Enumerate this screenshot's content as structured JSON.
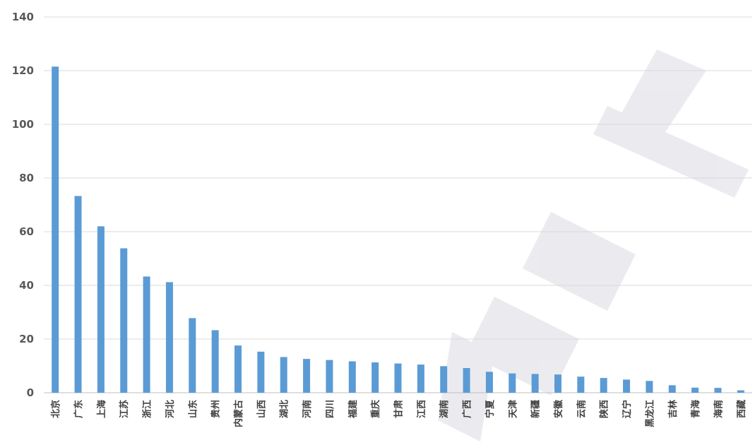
{
  "chart_data": {
    "type": "bar",
    "title": "",
    "xlabel": "",
    "ylabel": "",
    "ylim": [
      0,
      140
    ],
    "yticks": [
      0,
      20,
      40,
      60,
      80,
      100,
      120,
      140
    ],
    "grid": true,
    "legend": "none",
    "bar_color": "#5b9bd5",
    "categories": [
      "北京",
      "广东",
      "上海",
      "江苏",
      "浙江",
      "河北",
      "山东",
      "贵州",
      "内蒙古",
      "山西",
      "湖北",
      "河南",
      "四川",
      "福建",
      "重庆",
      "甘肃",
      "江西",
      "湖南",
      "广西",
      "宁夏",
      "天津",
      "新疆",
      "安徽",
      "云南",
      "陕西",
      "辽宁",
      "黑龙江",
      "吉林",
      "青海",
      "海南",
      "西藏"
    ],
    "values": [
      121.5,
      73.3,
      62,
      53.8,
      43.3,
      41.2,
      27.8,
      23.3,
      17.6,
      15.3,
      13.3,
      12.6,
      12.2,
      11.7,
      11.3,
      10.9,
      10.5,
      9.9,
      9.2,
      7.8,
      7.2,
      7,
      6.8,
      6,
      5.5,
      4.9,
      4.4,
      2.8,
      1.9,
      1.8,
      0.9
    ]
  }
}
